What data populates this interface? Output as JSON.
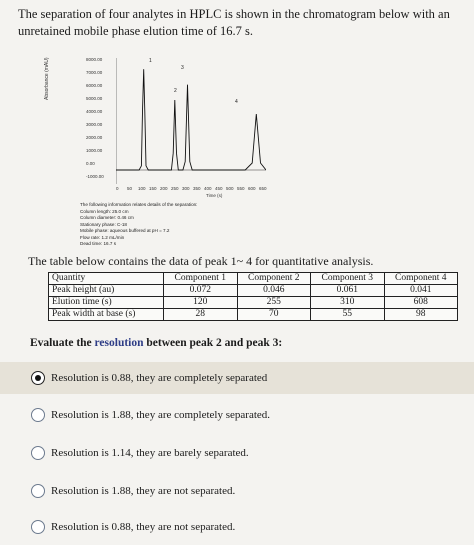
{
  "intro": {
    "line1": "The separation of four analytes in HPLC is shown in the chromatogram below with an",
    "line2": "unretained mobile phase elution time of 16.7 s."
  },
  "chromatogram": {
    "y_ticks": [
      "8000.00",
      "7000.00",
      "6000.00",
      "5000.00",
      "4000.00",
      "3000.00",
      "2000.00",
      "1000.00",
      "0.00",
      "-1000.00"
    ],
    "x_ticks": [
      "0",
      "50",
      "100",
      "150",
      "200",
      "250",
      "300",
      "350",
      "400",
      "450",
      "500",
      "550",
      "600",
      "650"
    ],
    "x_title": "Time (s)",
    "y_title": "Absorbance (mAU)",
    "peak_labels": [
      "1",
      "2",
      "3",
      "4"
    ],
    "info": [
      "The following information relates details of the separation:",
      "Column length: 25.0 cm",
      "Column diameter: 0.46 cm",
      "Stationary phase: C-18",
      "Mobile phase: aqueous buffered at pH = 7.2",
      "Flow rate: 1.2 mL/min",
      "Dead time: 16.7 s"
    ]
  },
  "chart_data": {
    "type": "line",
    "x": [
      0,
      100,
      110,
      115,
      120,
      125,
      130,
      140,
      240,
      248,
      255,
      262,
      270,
      290,
      300,
      310,
      320,
      330,
      560,
      590,
      608,
      626,
      650
    ],
    "series": [
      {
        "values": [
          0,
          0,
          300,
          4200,
          7200,
          4200,
          300,
          0,
          0,
          1200,
          5000,
          1200,
          0,
          0,
          600,
          6100,
          600,
          0,
          0,
          500,
          4000,
          500,
          0
        ]
      }
    ],
    "xlabel": "Time (s)",
    "ylabel": "Absorbance (mAU)",
    "xlim": [
      0,
      650
    ],
    "ylim": [
      -1000,
      8000
    ],
    "grid": false
  },
  "table_intro": "The table below contains the data of peak 1~ 4 for quantitative analysis.",
  "table": {
    "headers": [
      "Quantity",
      "Component 1",
      "Component 2",
      "Component 3",
      "Component 4"
    ],
    "rows": [
      [
        "Peak height (au)",
        "0.072",
        "0.046",
        "0.061",
        "0.041"
      ],
      [
        "Elution time (s)",
        "120",
        "255",
        "310",
        "608"
      ],
      [
        "Peak width at base (s)",
        "28",
        "70",
        "55",
        "98"
      ]
    ]
  },
  "question": {
    "prefix": "Evaluate the ",
    "keyword1": "resolution",
    "middle": " between ",
    "keyword2": "peak 2 and peak 3",
    "suffix": ":"
  },
  "options": [
    {
      "label": "Resolution is 0.88, they are completely separated",
      "selected": true
    },
    {
      "label": "Resolution is 1.88, they are completely separated.",
      "selected": false
    },
    {
      "label": "Resolution is 1.14, they are barely separated.",
      "selected": false
    },
    {
      "label": "Resolution is 1.88, they are not separated.",
      "selected": false
    },
    {
      "label": "Resolution is 0.88, they are not separated.",
      "selected": false
    }
  ],
  "colors": {
    "background": "#f4f3f0",
    "selected_option_bg": "#e6e2d8",
    "highlight_text": "#2e3d86"
  }
}
